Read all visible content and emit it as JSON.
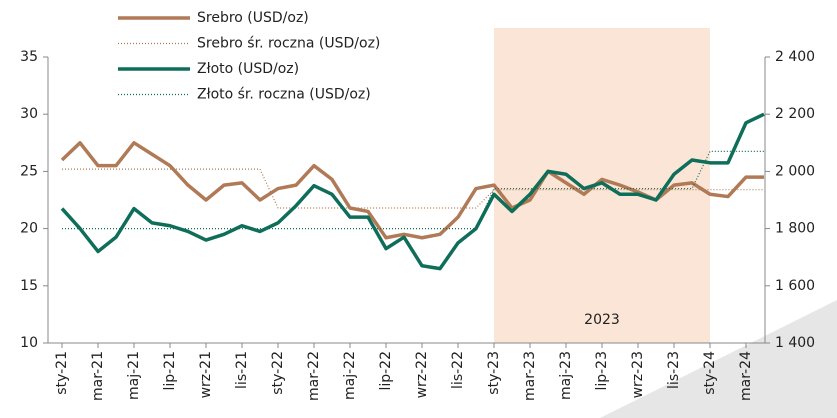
{
  "chart_data": {
    "type": "line",
    "categories": [
      "sty-21",
      null,
      "mar-21",
      null,
      "maj-21",
      null,
      "lip-21",
      null,
      "wrz-21",
      null,
      "lis-21",
      null,
      "sty-22",
      null,
      "mar-22",
      null,
      "maj-22",
      null,
      "lip-22",
      null,
      "wrz-22",
      null,
      "lis-22",
      null,
      "sty-23",
      null,
      "mar-23",
      null,
      "maj-23",
      null,
      "lip-23",
      null,
      "wrz-23",
      null,
      "lis-23",
      null,
      "sty-24",
      null,
      "mar-24",
      null
    ],
    "series": [
      {
        "name": "Srebro (USD/oz)",
        "color": "#b07a56",
        "dotted": false,
        "values": [
          26,
          27.5,
          25.5,
          25.5,
          27.5,
          26.5,
          25.5,
          23.8,
          22.5,
          23.8,
          24,
          22.5,
          23.5,
          23.8,
          25.5,
          24.3,
          21.8,
          21.5,
          19.2,
          19.5,
          19.2,
          19.5,
          21,
          23.5,
          23.8,
          21.8,
          22.5,
          25,
          24,
          23,
          24.3,
          23.8,
          23.2,
          22.5,
          23.8,
          24,
          23,
          22.8,
          24.5,
          24.5
        ]
      },
      {
        "name": "Srebro śr. roczna (USD/oz)",
        "color": "#b07a56",
        "dotted": true,
        "values": [
          25.2,
          25.2,
          25.2,
          25.2,
          25.2,
          25.2,
          25.2,
          25.2,
          25.2,
          25.2,
          25.2,
          25.2,
          21.8,
          21.8,
          21.8,
          21.8,
          21.8,
          21.8,
          21.8,
          21.8,
          21.8,
          21.8,
          21.8,
          21.8,
          23.4,
          23.4,
          23.4,
          23.4,
          23.4,
          23.4,
          23.4,
          23.4,
          23.4,
          23.4,
          23.4,
          23.4,
          23.4,
          23.4,
          23.4,
          23.4
        ]
      },
      {
        "name": "Złoto (USD/oz)",
        "color": "#0f6e59",
        "dotted": false,
        "axis": "y2",
        "values": [
          1870,
          1800,
          1720,
          1770,
          1870,
          1820,
          1810,
          1790,
          1760,
          1780,
          1810,
          1790,
          1820,
          1880,
          1950,
          1920,
          1840,
          1840,
          1730,
          1770,
          1670,
          1660,
          1750,
          1800,
          1920,
          1860,
          1920,
          2000,
          1990,
          1940,
          1960,
          1920,
          1920,
          1900,
          1990,
          2040,
          2030,
          2030,
          2170,
          2200
        ]
      },
      {
        "name": "Złoto śr. roczna (USD/oz)",
        "color": "#0f6e59",
        "dotted": true,
        "axis": "y2",
        "values": [
          1800,
          1800,
          1800,
          1800,
          1800,
          1800,
          1800,
          1800,
          1800,
          1800,
          1800,
          1800,
          1800,
          1800,
          1800,
          1800,
          1800,
          1800,
          1800,
          1800,
          1800,
          1800,
          1800,
          1800,
          1940,
          1940,
          1940,
          1940,
          1940,
          1940,
          1940,
          1940,
          1940,
          1940,
          1940,
          1940,
          2070,
          2070,
          2070,
          2070
        ]
      }
    ],
    "ylim": [
      10,
      35
    ],
    "yticks": [
      10,
      15,
      20,
      25,
      30,
      35
    ],
    "y2lim": [
      1400,
      2400
    ],
    "y2ticks": [
      {
        "value": 1400,
        "label": "1 400"
      },
      {
        "value": 1600,
        "label": "1 600"
      },
      {
        "value": 1800,
        "label": "1 800"
      },
      {
        "value": 2000,
        "label": "2 000"
      },
      {
        "value": 2200,
        "label": "2 200"
      },
      {
        "value": 2400,
        "label": "2 400"
      }
    ],
    "grid": false,
    "highlight": {
      "label": "2023",
      "start": 24,
      "end": 36,
      "color": "#fbe5d6"
    }
  }
}
